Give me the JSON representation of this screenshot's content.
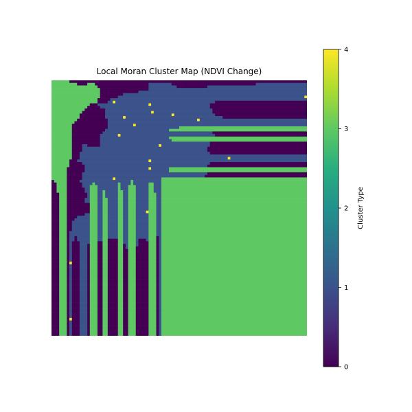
{
  "chart_data": {
    "type": "heatmap",
    "title": "Local Moran Cluster Map (NDVI Change)",
    "xlabel": "",
    "ylabel": "",
    "axes_visible": false,
    "colormap": "viridis",
    "value_range": [
      0,
      4
    ],
    "colorbar": {
      "label": "Cluster Type",
      "ticks": [
        0,
        1,
        2,
        3,
        4
      ],
      "position": "right"
    },
    "category_colors": {
      "0": "#440154",
      "1": "#3b528b",
      "2": "#21918c",
      "3": "#5ec962",
      "4": "#fde725"
    },
    "grid_size": [
      100,
      100
    ],
    "dominant_values": {
      "low_low_region": 1,
      "background_region": 0,
      "high_high_region": 3,
      "outlier_pixels": 4
    }
  }
}
